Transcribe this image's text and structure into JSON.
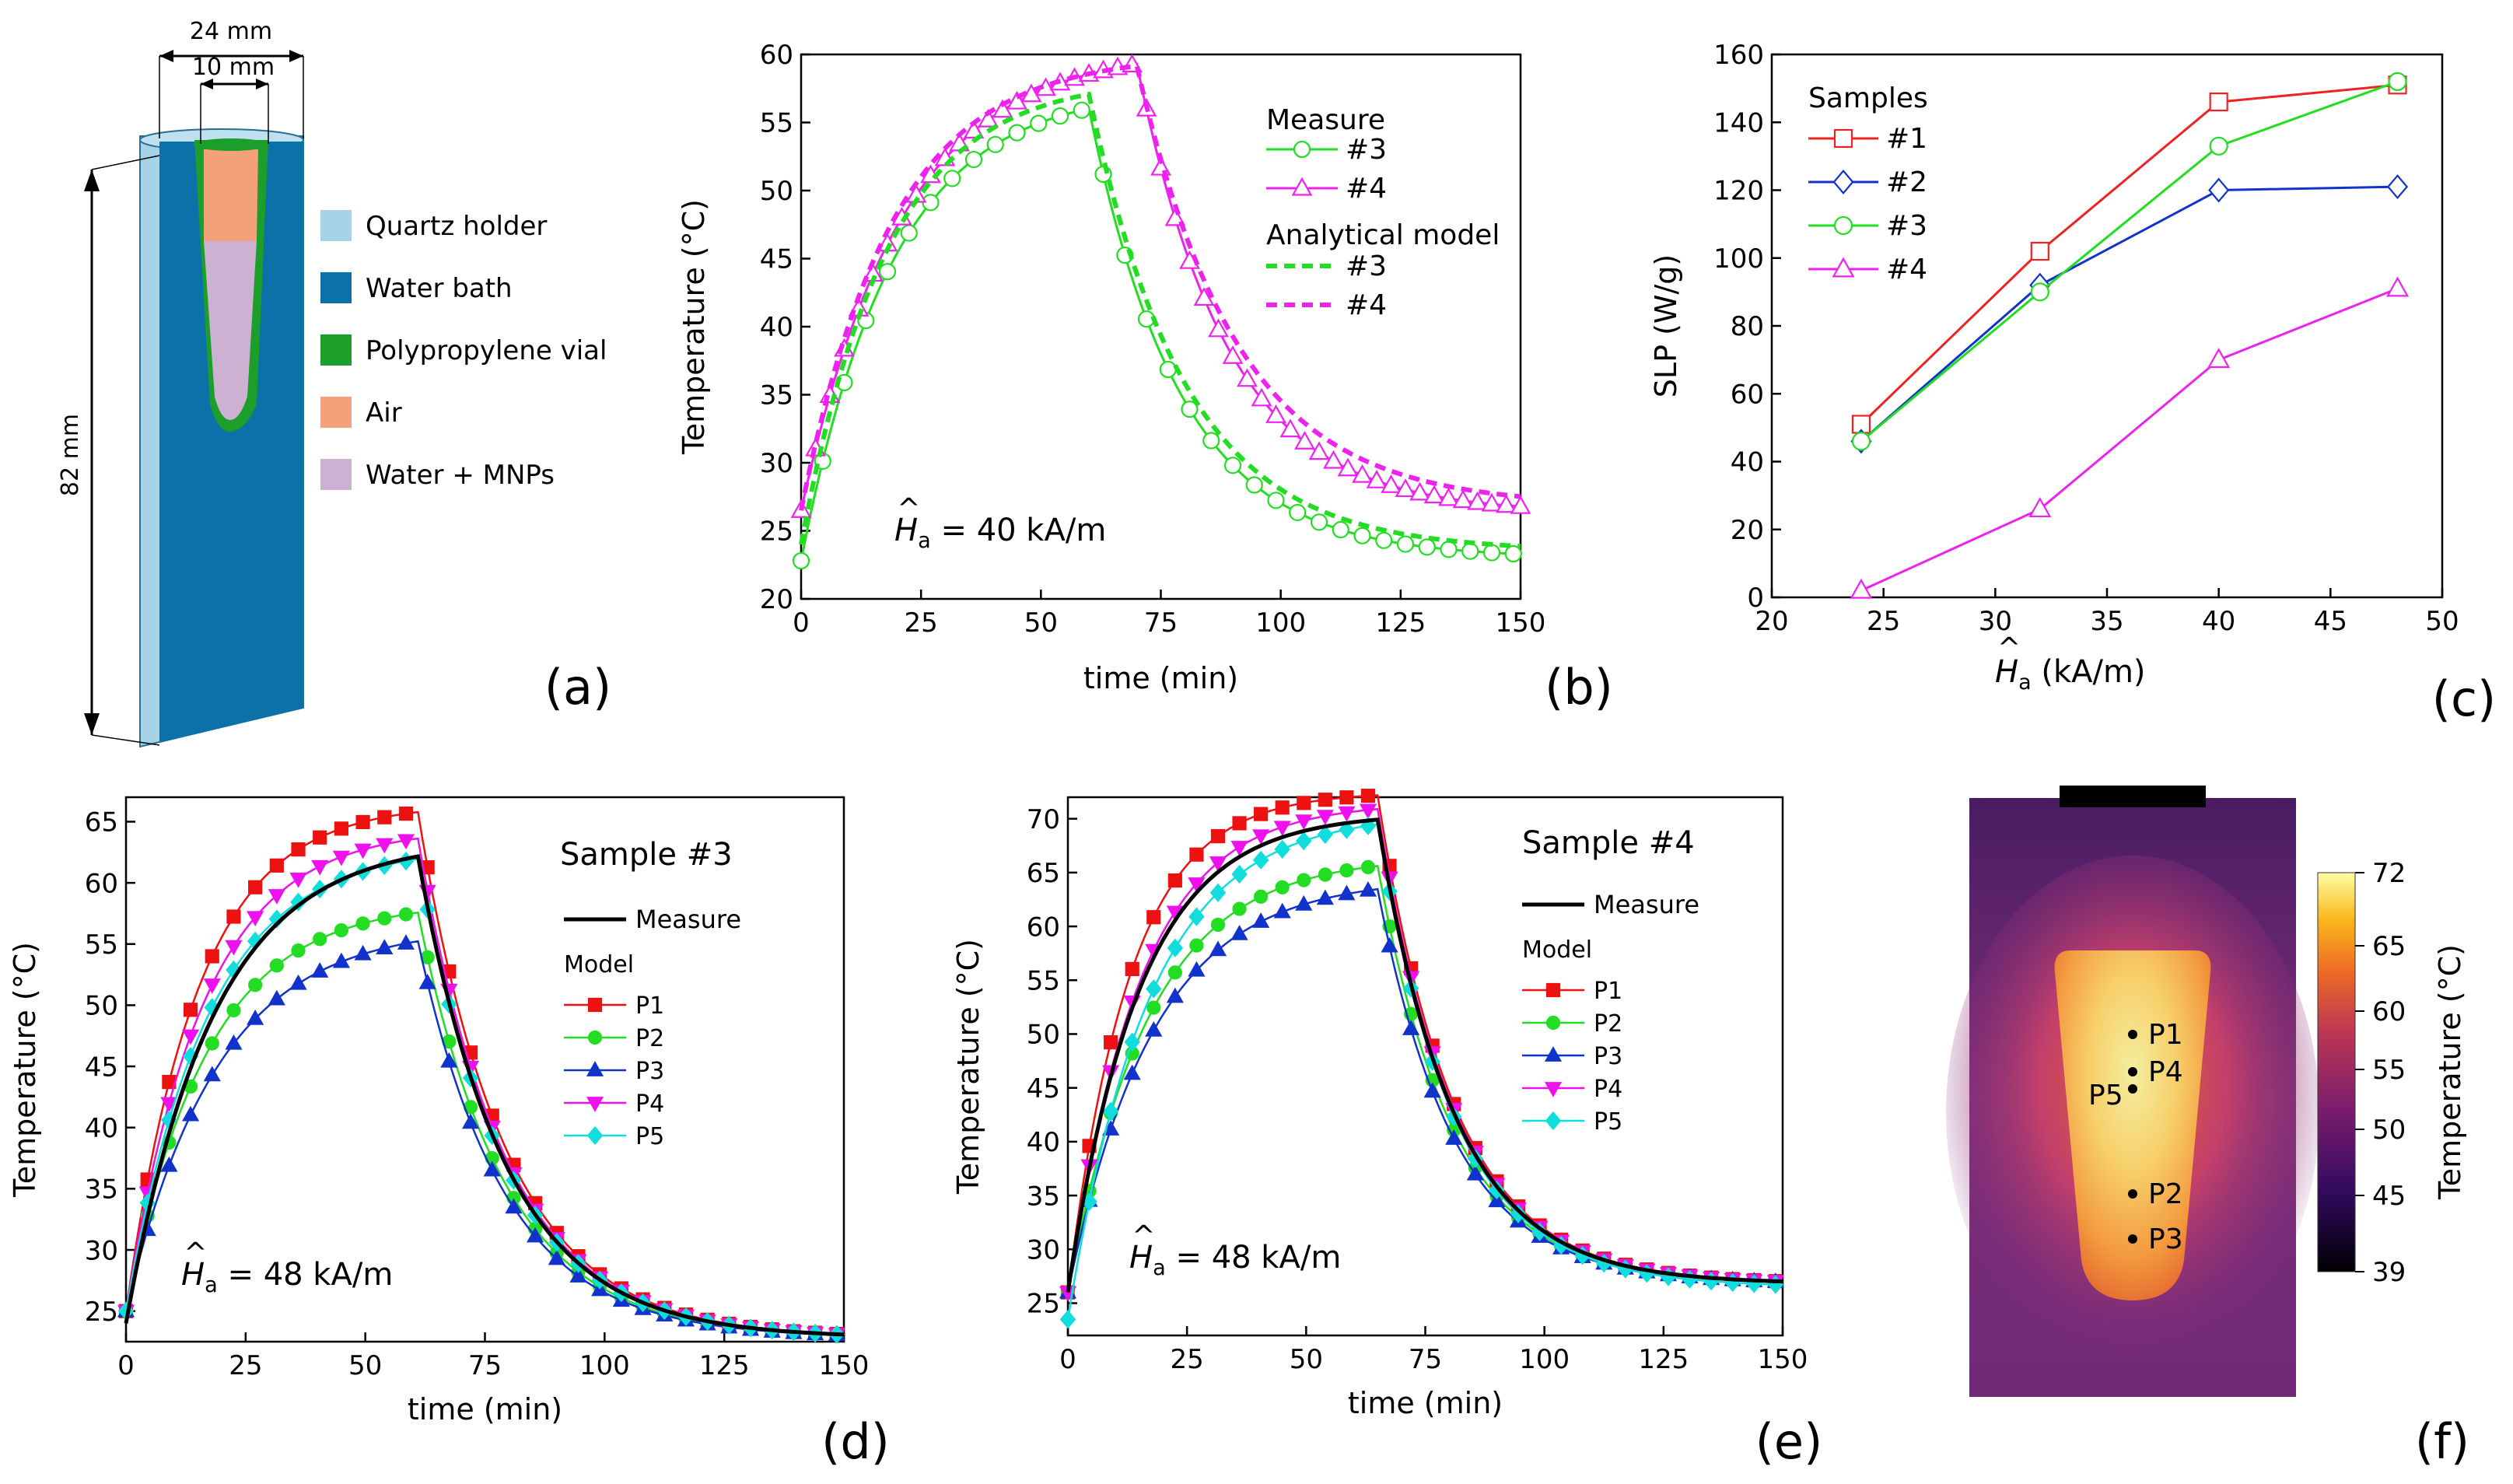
{
  "panel_labels": [
    "(a)",
    "(b)",
    "(c)",
    "(d)",
    "(e)",
    "(f)"
  ],
  "schematic": {
    "dim_outer": "24 mm",
    "dim_inner": "10 mm",
    "dim_height": "82 mm",
    "legend": [
      {
        "label": "Quartz holder",
        "color": "#a6d3e8"
      },
      {
        "label": "Water bath",
        "color": "#0a72a8"
      },
      {
        "label": "Polypropylene vial",
        "color": "#1c9e2a"
      },
      {
        "label": "Air",
        "color": "#f3a17a"
      },
      {
        "label": "Water + MNPs",
        "color": "#cdb1d3"
      }
    ]
  },
  "chart_data": [
    {
      "id": "b",
      "type": "line",
      "xlabel": "time (min)",
      "ylabel": "Temperature (°C)",
      "xlim": [
        0,
        150
      ],
      "ylim": [
        20,
        60
      ],
      "xticks": [
        0,
        25,
        50,
        75,
        100,
        125,
        150
      ],
      "yticks": [
        20,
        25,
        30,
        35,
        40,
        45,
        50,
        55,
        60
      ],
      "annotation": {
        "prefix": "H",
        "sub": "a",
        "suffix": " = 40 kA/m"
      },
      "legend": {
        "group1": "Measure",
        "group2": "Analytical model",
        "items": [
          "#3",
          "#4",
          "#3",
          "#4"
        ]
      },
      "series": [
        {
          "name": "Measure #3",
          "color": "#22dd22",
          "marker": "circle",
          "style": "solid",
          "params": {
            "T0": 22.8,
            "Tinf": 57.5,
            "tau": 19,
            "toff": 60,
            "Tend": 23,
            "tau2": 19
          }
        },
        {
          "name": "Measure #4",
          "color": "#ee22ee",
          "marker": "triangle",
          "style": "solid",
          "params": {
            "T0": 26.5,
            "Tinf": 60.5,
            "tau": 21,
            "toff": 70,
            "Tend": 26.3,
            "tau2": 19
          }
        },
        {
          "name": "Analytical model #3",
          "color": "#22dd22",
          "marker": "none",
          "style": "dashed",
          "params": {
            "T0": 24,
            "Tinf": 58.3,
            "tau": 18,
            "toff": 60,
            "Tend": 23.5,
            "tau2": 20
          }
        },
        {
          "name": "Analytical model #4",
          "color": "#ee22ee",
          "marker": "none",
          "style": "dashed",
          "params": {
            "T0": 26.5,
            "Tinf": 60,
            "tau": 19,
            "toff": 70,
            "Tend": 26.8,
            "tau2": 21
          }
        }
      ]
    },
    {
      "id": "c",
      "type": "line",
      "xlabel": "(kA/m)",
      "xlabel_symbol": {
        "prefix": "H",
        "sub": "a"
      },
      "ylabel": "SLP (W/g)",
      "xlim": [
        20,
        50
      ],
      "ylim": [
        0,
        160
      ],
      "xticks": [
        20,
        25,
        30,
        35,
        40,
        45,
        50
      ],
      "yticks": [
        0,
        20,
        40,
        60,
        80,
        100,
        120,
        140,
        160
      ],
      "legend_title": "Samples",
      "x": [
        24,
        32,
        40,
        48
      ],
      "series": [
        {
          "name": "#1",
          "color": "#ee2222",
          "marker": "square",
          "values": [
            51,
            102,
            146,
            151
          ]
        },
        {
          "name": "#2",
          "color": "#1133cc",
          "marker": "diamond",
          "values": [
            46,
            92,
            120,
            121
          ]
        },
        {
          "name": "#3",
          "color": "#22dd22",
          "marker": "circle",
          "values": [
            46,
            90,
            133,
            152
          ]
        },
        {
          "name": "#4",
          "color": "#ee22ee",
          "marker": "triangle",
          "values": [
            2,
            26,
            70,
            91
          ]
        }
      ]
    },
    {
      "id": "d",
      "type": "line",
      "title": "Sample #3",
      "xlabel": "time (min)",
      "ylabel": "Temperature (°C)",
      "xlim": [
        0,
        150
      ],
      "ylim": [
        22.5,
        67
      ],
      "xticks": [
        0,
        25,
        50,
        75,
        100,
        125,
        150
      ],
      "yticks": [
        25,
        30,
        35,
        40,
        45,
        50,
        55,
        60,
        65
      ],
      "annotation": {
        "prefix": "H",
        "sub": "a",
        "suffix": " = 48 kA/m"
      },
      "legend": {
        "measure": "Measure",
        "model": "Model"
      },
      "measure": {
        "name": "Measure",
        "color": "#000000",
        "params": {
          "T0": 24,
          "Tinf": 63.5,
          "tau": 18,
          "toff": 61,
          "Tend": 22.8,
          "tau2": 18
        }
      },
      "series": [
        {
          "name": "P1",
          "color": "#ee1111",
          "marker": "square",
          "params": {
            "T0": 25,
            "Tinf": 66.5,
            "tau": 15,
            "toff": 61,
            "Tend": 22.8,
            "tau2": 18
          }
        },
        {
          "name": "P2",
          "color": "#22dd22",
          "marker": "circle",
          "params": {
            "T0": 25,
            "Tinf": 58.5,
            "tau": 17,
            "toff": 61,
            "Tend": 22.8,
            "tau2": 18
          }
        },
        {
          "name": "P3",
          "color": "#1133cc",
          "marker": "triangle",
          "params": {
            "T0": 25,
            "Tinf": 56.5,
            "tau": 19,
            "toff": 61,
            "Tend": 22.8,
            "tau2": 18
          }
        },
        {
          "name": "P4",
          "color": "#ee11ee",
          "marker": "triangledown",
          "params": {
            "T0": 25,
            "Tinf": 64.5,
            "tau": 16,
            "toff": 61,
            "Tend": 22.8,
            "tau2": 18
          }
        },
        {
          "name": "P5",
          "color": "#11dddd",
          "marker": "diamond",
          "params": {
            "T0": 25,
            "Tinf": 63,
            "tau": 17,
            "toff": 61,
            "Tend": 22.8,
            "tau2": 18
          }
        }
      ]
    },
    {
      "id": "e",
      "type": "line",
      "title": "Sample #4",
      "xlabel": "time (min)",
      "ylabel": "Temperature (°C)",
      "xlim": [
        0,
        150
      ],
      "ylim": [
        22,
        72
      ],
      "xticks": [
        0,
        25,
        50,
        75,
        100,
        125,
        150
      ],
      "yticks": [
        25,
        30,
        35,
        40,
        45,
        50,
        55,
        60,
        65,
        70
      ],
      "annotation": {
        "prefix": "H",
        "sub": "a",
        "suffix": " = 48 kA/m"
      },
      "legend": {
        "measure": "Measure",
        "model": "Model"
      },
      "measure": {
        "name": "Measure",
        "color": "#000000",
        "params": {
          "T0": 26,
          "Tinf": 70.5,
          "tau": 15,
          "toff": 65,
          "Tend": 26.8,
          "tau2": 16
        }
      },
      "series": [
        {
          "name": "P1",
          "color": "#ee1111",
          "marker": "square",
          "params": {
            "T0": 26,
            "Tinf": 72.5,
            "tau": 13,
            "toff": 65,
            "Tend": 26.8,
            "tau2": 16
          }
        },
        {
          "name": "P2",
          "color": "#22dd22",
          "marker": "circle",
          "params": {
            "T0": 26,
            "Tinf": 66.5,
            "tau": 17,
            "toff": 65,
            "Tend": 26.8,
            "tau2": 16
          }
        },
        {
          "name": "P3",
          "color": "#1133cc",
          "marker": "triangle",
          "params": {
            "T0": 26,
            "Tinf": 64.5,
            "tau": 18,
            "toff": 65,
            "Tend": 26.8,
            "tau2": 16
          }
        },
        {
          "name": "P4",
          "color": "#ee11ee",
          "marker": "triangledown",
          "params": {
            "T0": 26,
            "Tinf": 71.5,
            "tau": 15,
            "toff": 65,
            "Tend": 26.8,
            "tau2": 16
          }
        },
        {
          "name": "P5",
          "color": "#11dddd",
          "marker": "diamond",
          "params": {
            "T0": 23.5,
            "Tinf": 70.5,
            "tau": 17,
            "toff": 65,
            "Tend": 26.5,
            "tau2": 16
          }
        }
      ]
    }
  ],
  "heatmap": {
    "colorbar_label": "Temperature (°C)",
    "colorbar_ticks": [
      "72",
      "65",
      "60",
      "55",
      "50",
      "45",
      "39"
    ],
    "points": [
      "P1",
      "P4",
      "P5",
      "P2",
      "P3"
    ]
  }
}
